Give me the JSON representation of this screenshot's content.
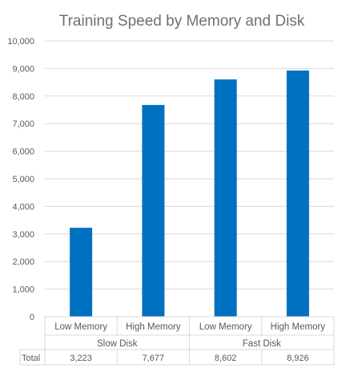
{
  "chart_data": {
    "type": "bar",
    "title": "Training Speed by Memory and Disk",
    "xlabel": "",
    "ylabel": "",
    "ylim": [
      0,
      10000
    ],
    "yticks": [
      "0",
      "1,000",
      "2,000",
      "3,000",
      "4,000",
      "5,000",
      "6,000",
      "7,000",
      "8,000",
      "9,000",
      "10,000"
    ],
    "categories": [
      "Low Memory",
      "High Memory",
      "Low Memory",
      "High Memory"
    ],
    "groups": [
      {
        "label": "Slow Disk",
        "span": 2
      },
      {
        "label": "Fast Disk",
        "span": 2
      }
    ],
    "series": [
      {
        "name": "Total",
        "values": [
          3223,
          7677,
          8602,
          8926
        ],
        "value_labels": [
          "3,223",
          "7,677",
          "8,602",
          "8,926"
        ]
      }
    ],
    "grid": true,
    "legend": "none",
    "data_table": true,
    "bar_color": "#0070c0"
  }
}
